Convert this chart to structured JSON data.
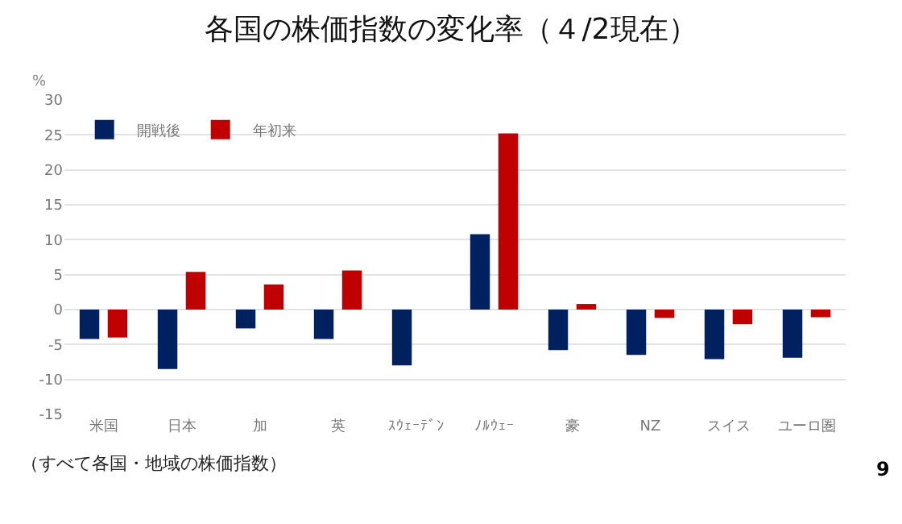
{
  "chart_data": {
    "type": "bar",
    "title": "各国の株価指数の変化率（４/2現在）",
    "ylabel": "%",
    "categories": [
      "米国",
      "日本",
      "加",
      "英",
      "ｽｳｪｰﾃﾞﾝ",
      "ﾉﾙｳｪｰ",
      "豪",
      "NZ",
      "スイス",
      "ユーロ圏"
    ],
    "series": [
      {
        "name": "開戦後",
        "color": "#002060",
        "values": [
          -4.2,
          -8.5,
          -2.7,
          -4.2,
          -8.0,
          10.8,
          -5.8,
          -6.5,
          -7.1,
          -6.9
        ]
      },
      {
        "name": "年初来",
        "color": "#c00000",
        "values": [
          -4.0,
          5.4,
          3.6,
          5.6,
          0,
          25.2,
          0.8,
          -1.2,
          -2.1,
          -1.1
        ]
      }
    ],
    "ylim": [
      -15,
      30
    ],
    "yticks": [
      -15,
      -10,
      -5,
      0,
      5,
      10,
      15,
      20,
      25,
      30
    ],
    "grid": "y",
    "legend": "top left",
    "annotations": [
      "（すべて各国・地域の株価指数）",
      "9"
    ]
  }
}
